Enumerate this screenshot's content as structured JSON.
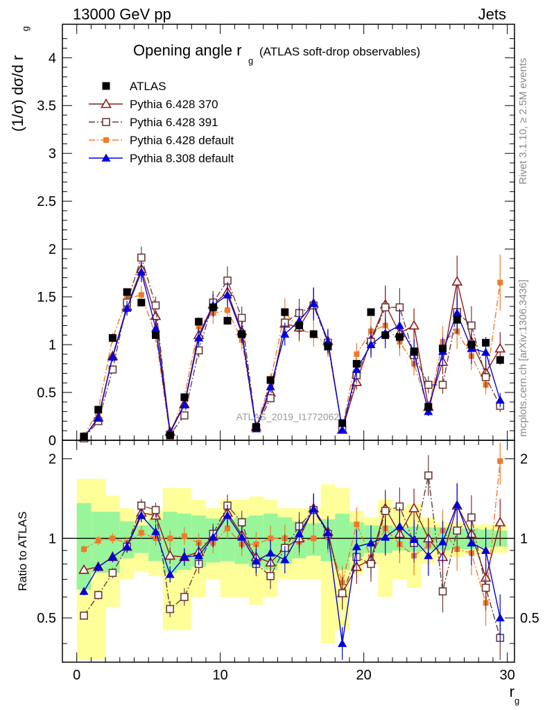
{
  "header": {
    "left": "13000 GeV pp",
    "right": "Jets",
    "rivet": "Rivet 3.1.10, ≥ 2.5M events",
    "mcplots": "mcplots.cern.ch [arXiv:1306.3436]"
  },
  "chart_data": {
    "type": "line",
    "title": "Opening angle r",
    "title_sub": "g",
    "title_suffix": "(ATLAS soft-drop observables)",
    "analysis_label": "ATLAS_2019_I1772062",
    "xlabel": "r",
    "xlabel_sub": "g",
    "ylabel": "(1/σ) dσ/d r",
    "ylabel_sub": "g",
    "ratio_ylabel": "Ratio to ATLAS",
    "xlim": [
      -1,
      30.5
    ],
    "ylim": [
      0,
      4.35
    ],
    "ratio_ylim": [
      0.34,
      2.35
    ],
    "ratio_scale": "log",
    "x_ticks": [
      "0",
      "10",
      "20",
      "30"
    ],
    "y_ticks": [
      "0",
      "0.5",
      "1",
      "1.5",
      "2",
      "2.5",
      "3",
      "3.5",
      "4"
    ],
    "ratio_ticks": [
      "0.5",
      "1",
      "2"
    ],
    "legend_position": "top-left",
    "x": [
      0.5,
      1.5,
      2.5,
      3.5,
      4.5,
      5.5,
      6.5,
      7.5,
      8.5,
      9.5,
      10.5,
      11.5,
      12.5,
      13.5,
      14.5,
      15.5,
      16.5,
      17.5,
      18.5,
      19.5,
      20.5,
      21.5,
      22.5,
      23.5,
      24.5,
      25.5,
      26.5,
      27.5,
      28.5,
      29.5
    ],
    "band_inner": [
      0.36,
      0.26,
      0.26,
      0.16,
      0.12,
      0.18,
      0.26,
      0.24,
      0.22,
      0.19,
      0.18,
      0.2,
      0.22,
      0.24,
      0.2,
      0.16,
      0.14,
      0.18,
      0.24,
      0.15,
      0.12,
      0.12,
      0.1,
      0.11,
      0.1,
      0.1,
      0.09,
      0.09,
      0.08,
      0.07
    ],
    "band_outer": [
      0.68,
      0.68,
      0.45,
      0.3,
      0.25,
      0.28,
      0.55,
      0.55,
      0.4,
      0.3,
      0.4,
      0.4,
      0.44,
      0.4,
      0.3,
      0.3,
      0.3,
      0.6,
      0.55,
      0.27,
      0.2,
      0.4,
      0.3,
      0.35,
      0.2,
      0.15,
      0.15,
      0.13,
      0.13,
      0.12
    ],
    "series": [
      {
        "name": "ATLAS",
        "color": "#000000",
        "marker": "square-filled",
        "values": [
          0.04,
          0.32,
          1.07,
          1.55,
          1.44,
          1.1,
          0.05,
          0.45,
          1.24,
          1.39,
          1.25,
          1.11,
          0.14,
          0.63,
          1.34,
          1.2,
          1.11,
          0.98,
          0.18,
          0.8,
          1.34,
          1.1,
          1.08,
          0.93,
          0.35,
          0.96,
          1.26,
          1.0,
          1.02,
          0.84
        ]
      },
      {
        "name": "Pythia 6.428 370",
        "color": "#8b1a1a",
        "marker": "triangle-open",
        "dash": "",
        "values": [
          0.03,
          0.24,
          0.88,
          1.4,
          1.79,
          1.3,
          0.09,
          0.38,
          1.1,
          1.42,
          1.55,
          1.14,
          0.14,
          0.5,
          1.22,
          1.18,
          1.43,
          1.04,
          0.11,
          0.61,
          1.05,
          1.42,
          1.12,
          1.2,
          0.35,
          0.82,
          1.66,
          1.03,
          0.71,
          0.96
        ]
      },
      {
        "name": "Pythia 6.428 391",
        "color": "#6b3a3a",
        "marker": "square-open",
        "dash": "9 3 2 3",
        "values": [
          0.02,
          0.2,
          0.74,
          1.44,
          1.91,
          1.41,
          0.06,
          0.26,
          0.94,
          1.44,
          1.67,
          1.28,
          0.13,
          0.44,
          1.23,
          1.33,
          1.41,
          1.02,
          0.11,
          0.68,
          1.03,
          1.39,
          1.39,
          0.89,
          0.58,
          0.58,
          1.34,
          1.2,
          0.66,
          0.36
        ]
      },
      {
        "name": "Pythia 6.428 default",
        "color": "#f07a2a",
        "marker": "square-filled-small",
        "dash": "9 3 2 3",
        "values": [
          0.04,
          0.32,
          1.07,
          1.48,
          1.52,
          1.1,
          0.05,
          0.46,
          1.19,
          1.33,
          1.36,
          1.05,
          0.13,
          0.63,
          1.34,
          1.16,
          1.11,
          0.99,
          0.12,
          0.9,
          1.14,
          1.2,
          1.03,
          0.8,
          0.33,
          1.03,
          1.14,
          0.88,
          0.58,
          1.65
        ]
      },
      {
        "name": "Pythia 8.308 default",
        "color": "#0000dd",
        "marker": "triangle-filled",
        "dash": "",
        "values": [
          0.03,
          0.23,
          0.87,
          1.38,
          1.76,
          1.17,
          0.08,
          0.37,
          1.07,
          1.41,
          1.52,
          1.12,
          0.12,
          0.56,
          1.11,
          1.25,
          1.43,
          1.03,
          0.11,
          0.74,
          1.0,
          1.12,
          1.2,
          0.92,
          0.3,
          0.93,
          1.33,
          0.96,
          0.92,
          0.42
        ]
      }
    ],
    "ratios": [
      [
        0.76,
        0.78,
        0.85,
        0.93,
        1.25,
        1.22,
        0.86,
        0.85,
        0.89,
        1.02,
        1.25,
        1.03,
        0.85,
        0.81,
        0.92,
        1.0,
        1.3,
        1.06,
        0.62,
        0.78,
        0.83,
        1.3,
        1.04,
        1.3,
        1.0,
        0.85,
        1.33,
        1.04,
        0.71,
        1.15
      ],
      [
        0.51,
        0.61,
        0.74,
        0.93,
        1.33,
        1.28,
        0.54,
        0.6,
        0.8,
        1.04,
        1.33,
        1.15,
        0.8,
        0.72,
        0.92,
        1.11,
        1.28,
        1.04,
        0.62,
        0.85,
        0.8,
        1.27,
        1.32,
        0.96,
        1.73,
        0.63,
        1.07,
        1.2,
        0.65,
        0.42
      ],
      [
        0.91,
        0.98,
        1.0,
        0.96,
        1.05,
        1.0,
        1.0,
        1.02,
        0.96,
        0.96,
        1.09,
        0.95,
        0.95,
        1.0,
        1.0,
        0.97,
        1.0,
        1.01,
        0.68,
        1.13,
        0.85,
        1.09,
        0.95,
        0.86,
        0.94,
        1.07,
        0.91,
        0.88,
        0.57,
        1.96
      ],
      [
        0.63,
        0.78,
        0.85,
        0.93,
        1.22,
        1.06,
        0.73,
        0.85,
        0.86,
        1.01,
        1.22,
        1.01,
        0.82,
        0.88,
        0.83,
        1.04,
        1.29,
        1.05,
        0.4,
        0.93,
        0.96,
        1.01,
        1.11,
        0.99,
        0.86,
        0.97,
        1.34,
        0.96,
        0.9,
        0.5
      ]
    ]
  }
}
